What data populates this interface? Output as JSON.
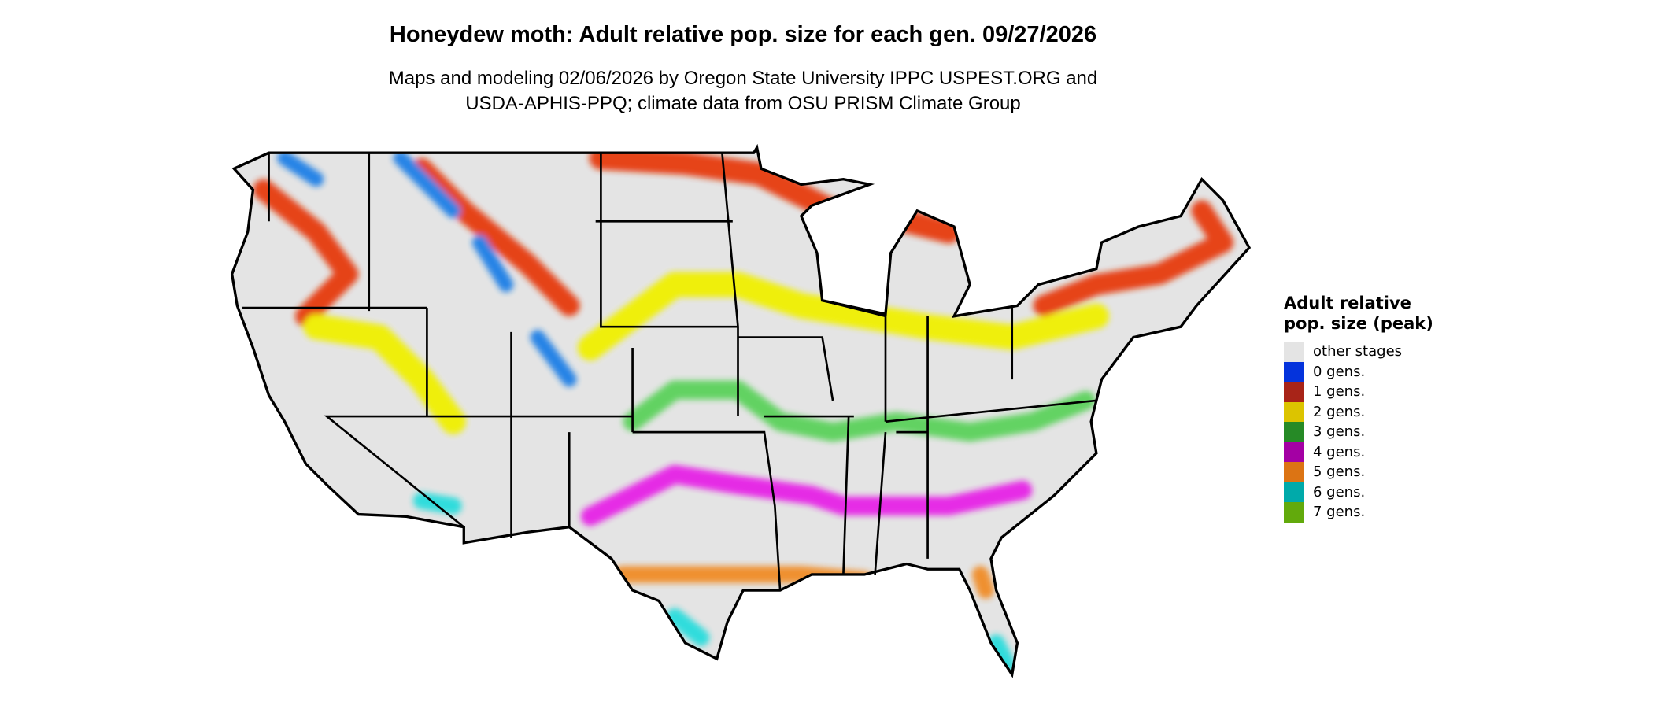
{
  "title": "Honeydew moth: Adult relative pop. size for each gen. 09/27/2026",
  "subtitle_lines": [
    "Maps and modeling 02/06/2026 by Oregon State University IPPC USPEST.ORG and",
    "USDA-APHIS-PPQ; climate data from OSU PRISM Climate Group"
  ],
  "legend": {
    "title": "Adult relative pop. size (peak)",
    "items": [
      {
        "label": "other stages",
        "color": "#e4e4e4"
      },
      {
        "label": "0 gens.",
        "color": "#0433dc"
      },
      {
        "label": "1 gens.",
        "color": "#a82418"
      },
      {
        "label": "2 gens.",
        "color": "#dcc400"
      },
      {
        "label": "3 gens.",
        "color": "#268a26"
      },
      {
        "label": "4 gens.",
        "color": "#a400a4"
      },
      {
        "label": "5 gens.",
        "color": "#dc7414"
      },
      {
        "label": "6 gens.",
        "color": "#00aaaa"
      },
      {
        "label": "7 gens.",
        "color": "#62aa0c"
      }
    ]
  },
  "map": {
    "region": "contiguous United States",
    "band_colors": {
      "north": "#e63a0a",
      "mountain_blue": "#1e7fe6",
      "yellow": "#f0f000",
      "green": "#5cd25c",
      "magenta": "#e620e6",
      "orange": "#f08c28",
      "cyan": "#28dcdc"
    }
  }
}
